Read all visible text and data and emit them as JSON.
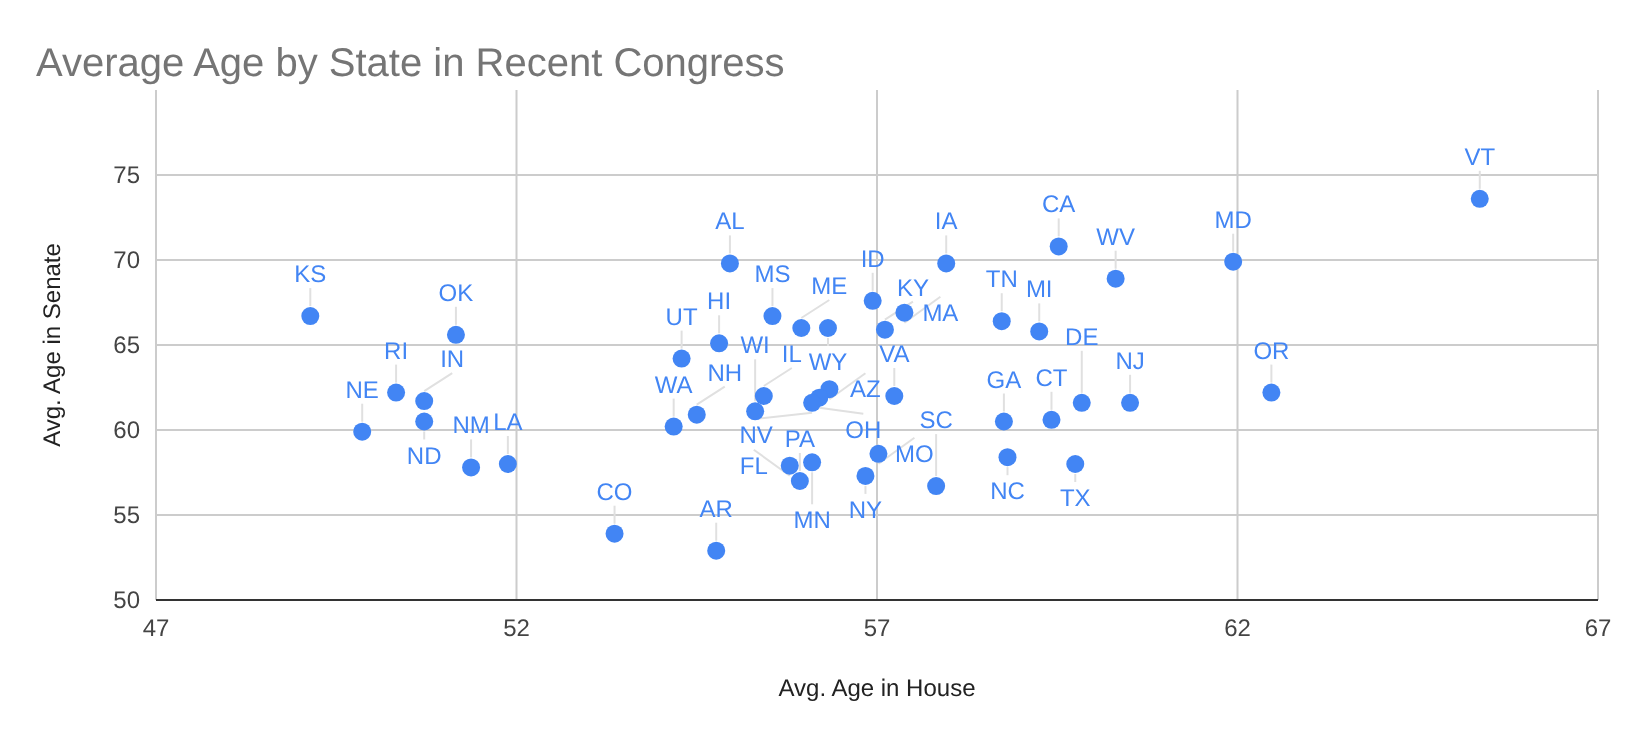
{
  "chart_data": {
    "type": "scatter",
    "title": "Average Age by State in Recent Congress",
    "xlabel": "Avg. Age in House",
    "ylabel": "Avg. Age in Senate",
    "xlim": [
      47,
      67
    ],
    "xticks": [
      47,
      52,
      57,
      62,
      67
    ],
    "ylim": [
      50,
      80
    ],
    "yticks": [
      50,
      55,
      60,
      65,
      70,
      75
    ],
    "grid": true,
    "marker": "circle",
    "series": [
      {
        "color": "#4285f4",
        "x": [
          49.14,
          51.16,
          50.33,
          50.72,
          50.72,
          49.86,
          51.37,
          51.88,
          53.36,
          54.18,
          54.29,
          54.5,
          54.81,
          54.96,
          54.77,
          55.55,
          55.31,
          55.43,
          55.79,
          55.93,
          55.95,
          56.32,
          56.34,
          56.2,
          56.1,
          56.1,
          56.94,
          57.11,
          57.38,
          57.24,
          57.02,
          56.84,
          57.82,
          57.96,
          58.73,
          59.25,
          59.52,
          60.31,
          58.76,
          58.81,
          59.42,
          59.84,
          59.75,
          60.51,
          62.47,
          61.94,
          65.36
        ],
        "values": [
          66.7,
          65.6,
          62.2,
          61.7,
          60.5,
          59.9,
          57.8,
          58.0,
          53.9,
          60.2,
          64.2,
          60.9,
          65.1,
          69.8,
          52.9,
          66.7,
          61.1,
          62.0,
          57.9,
          57.0,
          66.0,
          66.0,
          62.4,
          61.9,
          61.6,
          58.1,
          67.6,
          65.9,
          66.9,
          62.0,
          58.6,
          57.3,
          56.7,
          69.8,
          66.4,
          65.8,
          70.8,
          68.9,
          60.5,
          58.4,
          60.6,
          61.6,
          58.0,
          61.6,
          62.2,
          69.9,
          73.6
        ]
      }
    ],
    "annotations": [
      {
        "text": "KS",
        "x": 49.14,
        "y": 66.7
      },
      {
        "text": "OK",
        "x": 51.16,
        "y": 65.6
      },
      {
        "text": "RI",
        "x": 50.33,
        "y": 62.2
      },
      {
        "text": "IN",
        "x": 50.72,
        "y": 61.7
      },
      {
        "text": "ND",
        "x": 50.72,
        "y": 60.5
      },
      {
        "text": "NE",
        "x": 49.86,
        "y": 59.9
      },
      {
        "text": "NM",
        "x": 51.37,
        "y": 57.8
      },
      {
        "text": "LA",
        "x": 51.88,
        "y": 58.0
      },
      {
        "text": "CO",
        "x": 53.36,
        "y": 53.9
      },
      {
        "text": "WA",
        "x": 54.18,
        "y": 60.2
      },
      {
        "text": "UT",
        "x": 54.29,
        "y": 64.2
      },
      {
        "text": "NH",
        "x": 54.5,
        "y": 60.9
      },
      {
        "text": "HI",
        "x": 54.81,
        "y": 65.1
      },
      {
        "text": "AL",
        "x": 54.96,
        "y": 69.8
      },
      {
        "text": "AR",
        "x": 54.77,
        "y": 52.9
      },
      {
        "text": "MS",
        "x": 55.55,
        "y": 66.7
      },
      {
        "text": "WI",
        "x": 55.31,
        "y": 61.1
      },
      {
        "text": "IL",
        "x": 55.43,
        "y": 62.0
      },
      {
        "text": "FL",
        "x": 55.79,
        "y": 57.9
      },
      {
        "text": "PA",
        "x": 55.93,
        "y": 57.0
      },
      {
        "text": "ME",
        "x": 55.95,
        "y": 66.0
      },
      {
        "text": "WY",
        "x": 56.32,
        "y": 66.0
      },
      {
        "text": "AZ",
        "x": 56.34,
        "y": 62.4
      },
      {
        "text": "OH",
        "x": 56.2,
        "y": 61.9
      },
      {
        "text": "NV",
        "x": 56.1,
        "y": 61.6
      },
      {
        "text": "MN",
        "x": 56.1,
        "y": 58.1
      },
      {
        "text": "ID",
        "x": 56.94,
        "y": 67.6
      },
      {
        "text": "KY",
        "x": 57.11,
        "y": 65.9
      },
      {
        "text": "MA",
        "x": 57.38,
        "y": 66.9
      },
      {
        "text": "VA",
        "x": 57.24,
        "y": 62.0
      },
      {
        "text": "MO",
        "x": 57.02,
        "y": 58.6
      },
      {
        "text": "NY",
        "x": 56.84,
        "y": 57.3
      },
      {
        "text": "SC",
        "x": 57.82,
        "y": 56.7
      },
      {
        "text": "IA",
        "x": 57.96,
        "y": 69.8
      },
      {
        "text": "TN",
        "x": 58.73,
        "y": 66.4
      },
      {
        "text": "MI",
        "x": 59.25,
        "y": 65.8
      },
      {
        "text": "CA",
        "x": 59.52,
        "y": 70.8
      },
      {
        "text": "WV",
        "x": 60.31,
        "y": 68.9
      },
      {
        "text": "GA",
        "x": 58.76,
        "y": 60.5
      },
      {
        "text": "NC",
        "x": 58.81,
        "y": 58.4
      },
      {
        "text": "CT",
        "x": 59.42,
        "y": 60.6
      },
      {
        "text": "DE",
        "x": 59.84,
        "y": 61.6
      },
      {
        "text": "TX",
        "x": 59.75,
        "y": 58.0
      },
      {
        "text": "NJ",
        "x": 60.51,
        "y": 61.6
      },
      {
        "text": "OR",
        "x": 62.47,
        "y": 62.2
      },
      {
        "text": "MD",
        "x": 61.94,
        "y": 69.9
      },
      {
        "text": "VT",
        "x": 65.36,
        "y": 73.6
      }
    ]
  }
}
